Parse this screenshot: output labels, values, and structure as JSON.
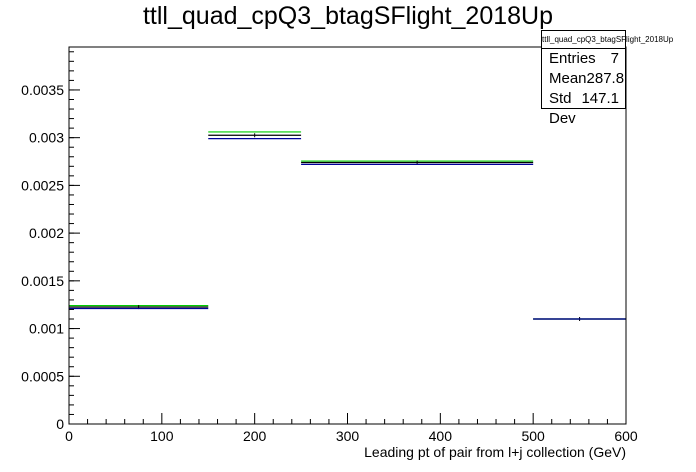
{
  "chart_data": {
    "type": "histogram",
    "title": "ttll_quad_cpQ3_btagSFlight_2018Up",
    "xlabel": "Leading pt of pair from l+j collection (GeV)",
    "ylabel": "",
    "xlim": [
      0,
      600
    ],
    "ylim": [
      0,
      0.00395
    ],
    "x_ticks": [
      0,
      100,
      200,
      300,
      400,
      500,
      600
    ],
    "y_ticks": [
      0,
      0.0005,
      0.001,
      0.0015,
      0.002,
      0.0025,
      0.003,
      0.0035
    ],
    "y_tick_labels": [
      "0",
      "0.0005",
      "0.001",
      "0.0015",
      "0.002",
      "0.0025",
      "0.003",
      "0.0035"
    ],
    "bins": [
      [
        0,
        150
      ],
      [
        150,
        250
      ],
      [
        250,
        500
      ],
      [
        500,
        600
      ]
    ],
    "series": [
      {
        "color": "#00cc00",
        "values": [
          0.00124,
          0.00306,
          0.002755,
          0.0011
        ]
      },
      {
        "color": "#000000",
        "values": [
          0.001225,
          0.003025,
          0.00274,
          0.0011
        ]
      },
      {
        "color": "#000099",
        "values": [
          0.00121,
          0.00299,
          0.00272,
          0.0011
        ]
      }
    ],
    "grid": false,
    "legend": "none",
    "stats_box": {
      "title": "ttll_quad_cpQ3_btagSFlight_2018Up",
      "rows": [
        {
          "label": "Entries",
          "value": "7"
        },
        {
          "label": "Mean",
          "value": "287.8"
        },
        {
          "label": "Std Dev",
          "value": "147.1"
        }
      ]
    }
  }
}
